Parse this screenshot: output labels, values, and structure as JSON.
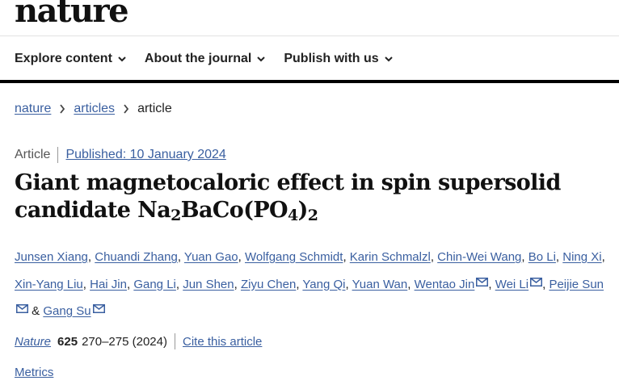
{
  "site": {
    "logo": "nature"
  },
  "nav": {
    "items": [
      {
        "label": "Explore content"
      },
      {
        "label": "About the journal"
      },
      {
        "label": "Publish with us"
      }
    ]
  },
  "breadcrumb": {
    "items": [
      "nature",
      "articles"
    ],
    "current": "article"
  },
  "article": {
    "type": "Article",
    "published": "Published: 10 January 2024",
    "title_part1": "Giant magnetocaloric effect in spin supersolid candidate Na",
    "sub1": "2",
    "title_part2": "BaCo(PO",
    "sub2": "4",
    "title_part3": ")",
    "sub3": "2",
    "authors": [
      {
        "name": "Junsen Xiang",
        "mail": false
      },
      {
        "name": "Chuandi Zhang",
        "mail": false
      },
      {
        "name": "Yuan Gao",
        "mail": false
      },
      {
        "name": "Wolfgang Schmidt",
        "mail": false
      },
      {
        "name": "Karin Schmalzl",
        "mail": false
      },
      {
        "name": "Chin-Wei Wang",
        "mail": false
      },
      {
        "name": "Bo Li",
        "mail": false
      },
      {
        "name": "Ning Xi",
        "mail": false
      },
      {
        "name": "Xin-Yang Liu",
        "mail": false
      },
      {
        "name": "Hai Jin",
        "mail": false
      },
      {
        "name": "Gang Li",
        "mail": false
      },
      {
        "name": "Jun Shen",
        "mail": false
      },
      {
        "name": "Ziyu Chen",
        "mail": false
      },
      {
        "name": "Yang Qi",
        "mail": false
      },
      {
        "name": "Yuan Wan",
        "mail": false
      },
      {
        "name": "Wentao Jin",
        "mail": true
      },
      {
        "name": "Wei Li",
        "mail": true
      },
      {
        "name": "Peijie Sun",
        "mail": true
      },
      {
        "name": "Gang Su",
        "mail": true
      }
    ],
    "journal": "Nature",
    "volume": "625",
    "pages_year": "270–275 (2024)",
    "cite_label": "Cite this article",
    "metrics_label": "Metrics"
  },
  "colors": {
    "link": "#3a5fa0",
    "navbar_border": "#000000"
  }
}
